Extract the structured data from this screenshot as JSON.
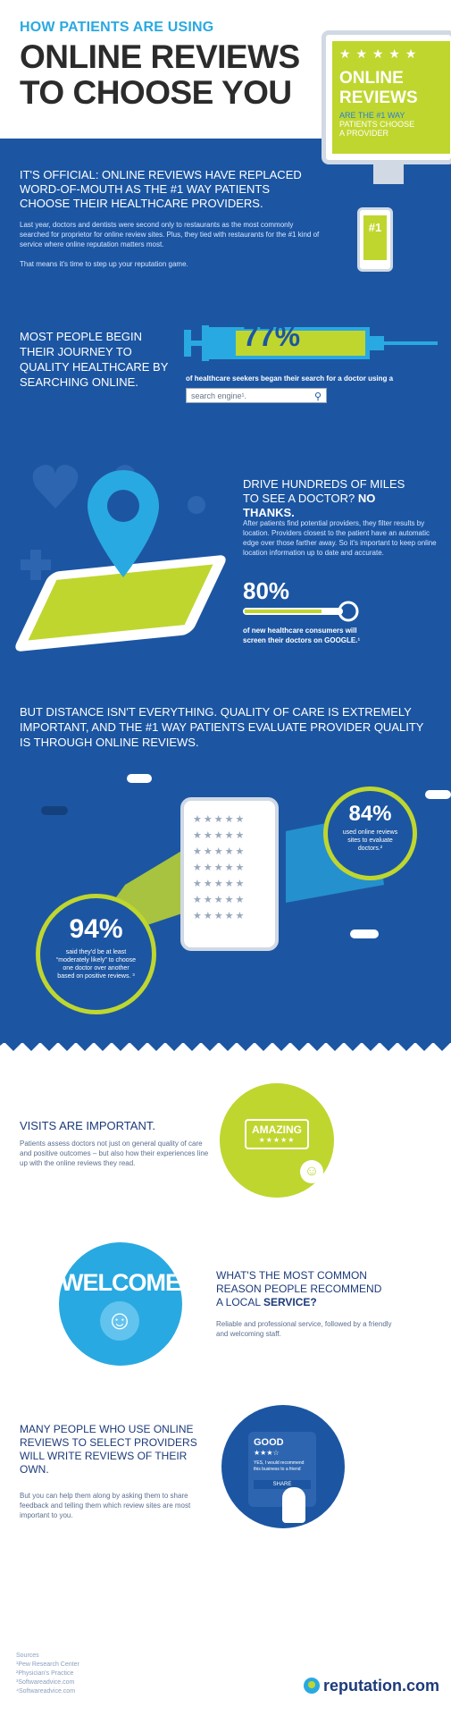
{
  "header": {
    "kicker": "HOW PATIENTS ARE USING",
    "title_line1": "ONLINE REVIEWS",
    "title_line2": "TO CHOOSE YOU"
  },
  "monitor": {
    "stars": "★ ★ ★ ★ ★",
    "line1": "ONLINE",
    "line2": "REVIEWS",
    "sub1": "ARE THE #1 WAY",
    "sub2": "PATIENTS CHOOSE",
    "sub3": "A PROVIDER",
    "phone_badge": "#1"
  },
  "intro": {
    "lead": "IT'S OFFICIAL: ONLINE REVIEWS HAVE REPLACED WORD-OF-MOUTH AS THE #1 WAY PATIENTS CHOOSE THEIR HEALTHCARE PROVIDERS.",
    "body": "Last year, doctors and dentists were second only to restaurants as the most commonly searched for proprietor for online review sites. Plus, they tied with restaurants for the #1 kind of service where online reputation matters most.",
    "note": "That means it's time to step up your reputation game."
  },
  "search_section": {
    "lead": "MOST PEOPLE BEGIN THEIR JOURNEY TO QUALITY HEALTHCARE BY SEARCHING ONLINE.",
    "percent": "77%",
    "caption": "of healthcare seekers began their search for a doctor using a",
    "search_text": "search engine¹.",
    "search_icon": "magnifier-icon"
  },
  "distance": {
    "lead": "DRIVE HUNDREDS OF MILES TO SEE A DOCTOR?",
    "lead_emph": "NO THANKS.",
    "body": "After patients find potential providers, they filter results by location. Providers closest to the patient have an automatic edge over those farther away. So it's important to keep online location information up to date and accurate.",
    "percent": "80%",
    "caption": "of new healthcare consumers will screen their doctors on GOOGLE.¹"
  },
  "quality": {
    "lead": "BUT DISTANCE ISN'T EVERYTHING. QUALITY OF CARE IS EXTREMELY IMPORTANT, AND THE #1 WAY PATIENTS EVALUATE PROVIDER QUALITY IS THROUGH ONLINE REVIEWS."
  },
  "stats": {
    "left_percent": "94%",
    "left_caption": "said they'd be at least “moderately likely” to choose one doctor over another based on positive reviews. ³",
    "right_percent": "84%",
    "right_caption": "used online reviews sites to evaluate doctors.²"
  },
  "visits": {
    "heading": "VISITS ARE IMPORTANT.",
    "body": "Patients assess doctors not just on general quality of care and positive outcomes – but also how their experiences line up with the online reviews they read.",
    "badge": "AMAZING",
    "badge_stars": "★★★★★"
  },
  "service": {
    "welcome": "WELCOME",
    "heading_a": "WHAT'S THE MOST COMMON REASON PEOPLE RECOMMEND A LOCAL",
    "heading_b": "SERVICE?",
    "body": "Reliable and professional service, followed by a friendly and welcoming staff."
  },
  "write": {
    "heading": "MANY PEOPLE WHO USE ONLINE REVIEWS TO SELECT PROVIDERS WILL WRITE REVIEWS OF THEIR OWN.",
    "body": "But you can help them along by asking them to share feedback and telling them which review sites are most important to you.",
    "card_title": "GOOD",
    "card_stars": "★★★☆",
    "card_text": "YES, I would recommend this business to a friend",
    "card_button": "SHARE"
  },
  "sources": {
    "title": "Sources",
    "items": [
      "¹Pew Research Center",
      "²Physician's Practice",
      "³Softwareadvice.com",
      "⁴Softwareadvice.com"
    ]
  },
  "logo": {
    "text": "reputation.com"
  },
  "colors": {
    "navy": "#1c56a2",
    "cyan": "#29a9e1",
    "lime": "#bfd62f"
  }
}
